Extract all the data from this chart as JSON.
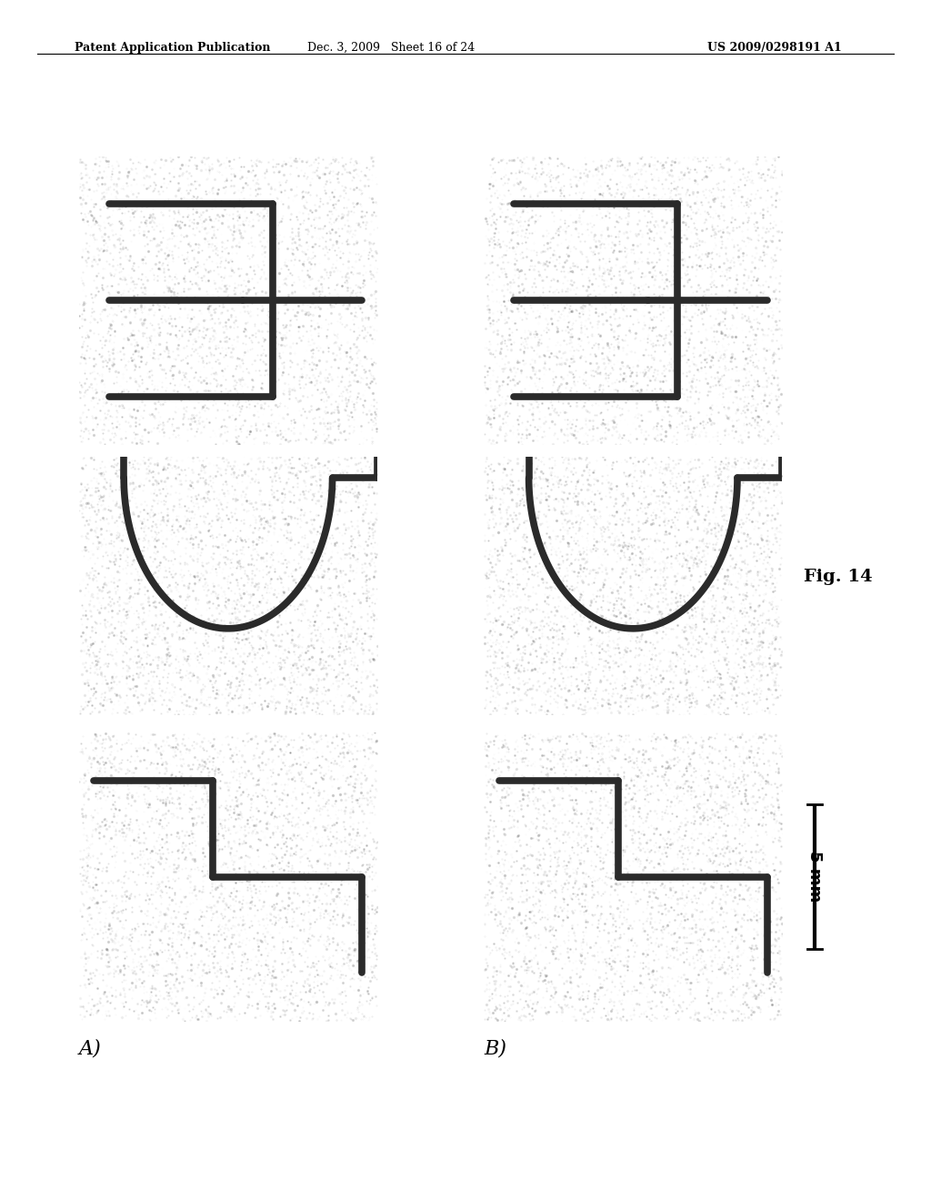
{
  "header_left": "Patent Application Publication",
  "header_mid": "Dec. 3, 2009   Sheet 16 of 24",
  "header_right": "US 2009/0298191 A1",
  "fig_label": "Fig. 14",
  "scale_label": "5 mm",
  "label_A": "A)",
  "label_B": "B)",
  "bg_white": "#f5f5f0",
  "bg_gray": "#b8b8b0",
  "line_color": "#2a2a2a",
  "line_width": 5.5,
  "panel_positions": {
    "A_row0": [
      0.08,
      0.62,
      0.34,
      0.25
    ],
    "A_row1": [
      0.08,
      0.38,
      0.34,
      0.22
    ],
    "A_row2": [
      0.08,
      0.12,
      0.34,
      0.24
    ],
    "B_row0": [
      0.5,
      0.62,
      0.34,
      0.25
    ],
    "B_row1": [
      0.5,
      0.38,
      0.34,
      0.22
    ],
    "B_row2": [
      0.5,
      0.12,
      0.34,
      0.24
    ]
  }
}
